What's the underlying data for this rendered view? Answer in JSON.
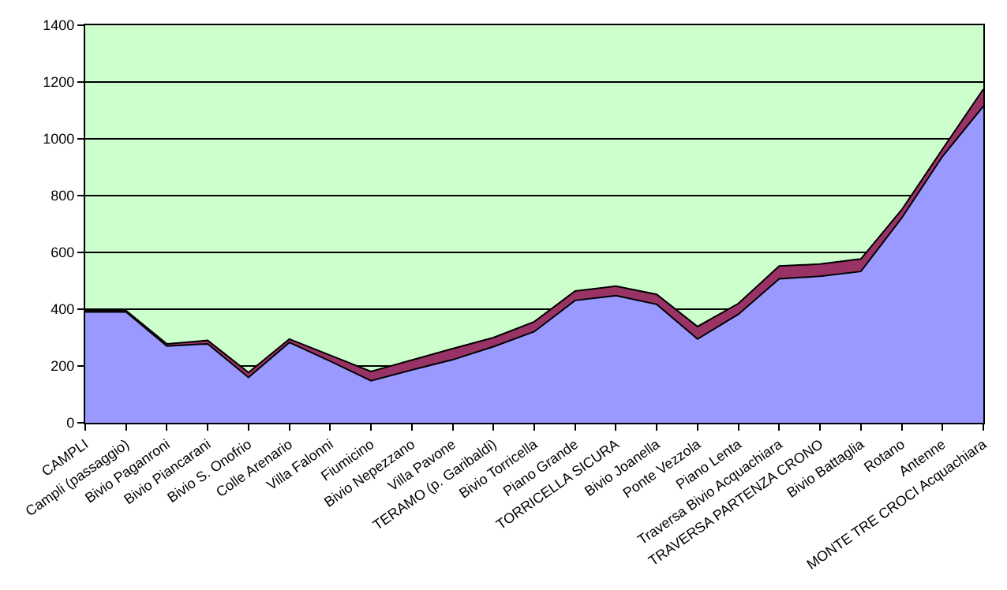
{
  "chart_data": {
    "type": "area",
    "stacked": true,
    "categories": [
      "CAMPLI",
      "Campli (passaggio)",
      "Bivio Paganroni",
      "Bivio Piancarani",
      "Bivio S. Onofrio",
      "Colle Arenario",
      "Villa Falonni",
      "Fiumicino",
      "Bivio Nepezzano",
      "Villa Pavone",
      "TERAMO (p. Garibaldi)",
      "Bivio Torricella",
      "Piano Grande",
      "TORRICELLA SICURA",
      "Bivio Joanella",
      "Ponte Vezzola",
      "Piano Lenta",
      "Traversa Bivio Acquachiara",
      "TRAVERSA PARTENZA CRONO",
      "Bivio Battaglia",
      "Rotano",
      "Antenne",
      "MONTE TRE CROCI Acquachiara"
    ],
    "series": [
      {
        "color": "#9999ff",
        "values": [
          390,
          390,
          270,
          278,
          160,
          283,
          217,
          148,
          186,
          222,
          268,
          321,
          431,
          448,
          417,
          295,
          382,
          507,
          516,
          533,
          721,
          938,
          1115
        ]
      },
      {
        "color": "#993366",
        "values": [
          5,
          5,
          8,
          12,
          17,
          12,
          21,
          33,
          35,
          39,
          32,
          35,
          33,
          33,
          35,
          44,
          38,
          45,
          43,
          44,
          29,
          26,
          60
        ]
      }
    ],
    "ylim": [
      0,
      1400
    ],
    "yticks": [
      0,
      200,
      400,
      600,
      800,
      1000,
      1200,
      1400
    ],
    "grid": "y"
  }
}
